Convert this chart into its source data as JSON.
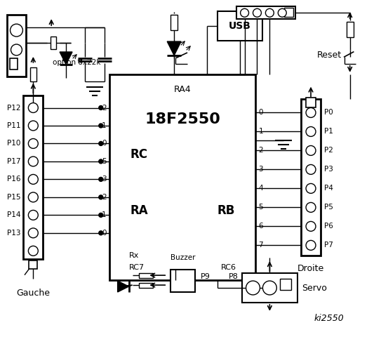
{
  "bg_color": "#ffffff",
  "chip_label": "18F2550",
  "chip_sublabel": "RA4",
  "rc_label": "RC",
  "ra_label": "RA",
  "rb_label": "RB",
  "rc_pins": [
    "2",
    "1",
    "0"
  ],
  "ra_pins": [
    "5",
    "3",
    "2",
    "1",
    "0"
  ],
  "left_labels": [
    "P12",
    "P11",
    "P10",
    "P17",
    "P16",
    "P15",
    "P14",
    "P13"
  ],
  "rb_pins": [
    "0",
    "1",
    "2",
    "3",
    "4",
    "5",
    "6",
    "7"
  ],
  "right_labels": [
    "P0",
    "P1",
    "P2",
    "P3",
    "P4",
    "P5",
    "P6",
    "P7"
  ],
  "rx_label": "Rx",
  "rc7_label": "RC7",
  "rc6_label": "RC6",
  "ki2550_label": "ki2550",
  "gauche_label": "Gauche",
  "droite_label": "Droite",
  "servo_label": "Servo",
  "buzzer_label": "Buzzer",
  "usb_label": "USB",
  "reset_label": "Reset",
  "option_label": "option 8x22k",
  "p8_label": "P8",
  "p9_label": "P9"
}
